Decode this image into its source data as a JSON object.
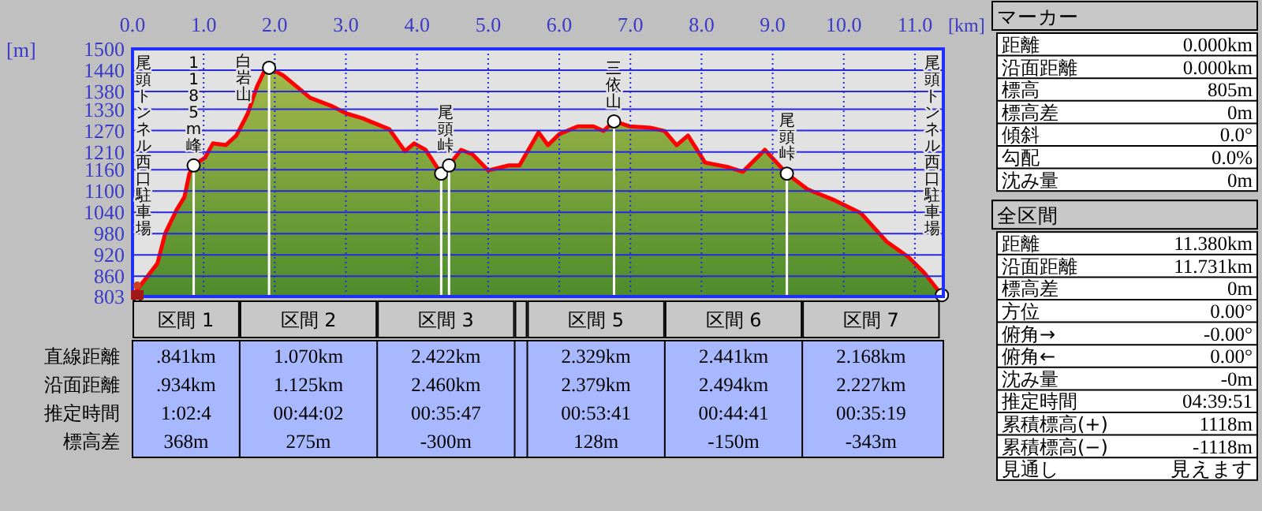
{
  "chart_data": [
    {
      "type": "area",
      "xlabel": "[km]",
      "ylabel": "[m]",
      "xlim": [
        0,
        11.4
      ],
      "ylim": [
        803,
        1500
      ],
      "xticks": [
        {
          "value": 0,
          "label": "0.0"
        },
        {
          "value": 1,
          "label": "1.0"
        },
        {
          "value": 2,
          "label": "2.0"
        },
        {
          "value": 3,
          "label": "3.0"
        },
        {
          "value": 4,
          "label": "4.0"
        },
        {
          "value": 5,
          "label": "5.0"
        },
        {
          "value": 6,
          "label": "6.0"
        },
        {
          "value": 7,
          "label": "7.0"
        },
        {
          "value": 8,
          "label": "8.0"
        },
        {
          "value": 9,
          "label": "9.0"
        },
        {
          "value": 10,
          "label": "10.0"
        },
        {
          "value": 11,
          "label": "11.0"
        }
      ],
      "yticks": [
        803,
        860,
        920,
        980,
        1040,
        1100,
        1160,
        1210,
        1270,
        1330,
        1380,
        1440,
        1500
      ],
      "grid": true,
      "series": [
        {
          "type": "area",
          "color": "#ff0000",
          "x": [
            0,
            0.35,
            0.46,
            0.62,
            0.73,
            0.8,
            0.86,
            1.02,
            1.13,
            1.31,
            1.46,
            1.62,
            1.75,
            1.86,
            1.92,
            2.12,
            2.5,
            2.79,
            3.01,
            3.23,
            3.61,
            3.83,
            3.96,
            4.12,
            4.34,
            4.45,
            4.62,
            4.78,
            5.0,
            5.29,
            5.44,
            5.71,
            5.84,
            6.0,
            6.26,
            6.48,
            6.62,
            6.77,
            6.99,
            7.28,
            7.48,
            7.65,
            7.81,
            8.05,
            8.38,
            8.58,
            8.89,
            9.2,
            9.49,
            9.87,
            10.24,
            10.6,
            10.91,
            11.13,
            11.38
          ],
          "values": [
            805,
            896,
            981,
            1047,
            1083,
            1149,
            1172,
            1194,
            1234,
            1229,
            1256,
            1318,
            1394,
            1440,
            1447,
            1425,
            1362,
            1340,
            1318,
            1305,
            1274,
            1212,
            1234,
            1216,
            1149,
            1172,
            1216,
            1203,
            1158,
            1172,
            1172,
            1265,
            1229,
            1260,
            1282,
            1282,
            1269,
            1296,
            1282,
            1278,
            1269,
            1229,
            1256,
            1180,
            1167,
            1154,
            1216,
            1149,
            1105,
            1074,
            1038,
            958,
            914,
            870,
            807
          ]
        },
        {
          "type": "lollipop",
          "color": "#ffffff",
          "marker": "circle",
          "x": [
            0.86,
            1.92,
            4.34,
            4.45,
            6.77,
            9.2,
            11.38
          ],
          "values": [
            1172,
            1447,
            1149,
            1172,
            1296,
            1149,
            807
          ]
        }
      ],
      "annotations": [
        "尾頭トンネル西口駐車場",
        {
          "text": "1185m峰",
          "x": 0.86,
          "y": 1172
        },
        {
          "text": "白岩山",
          "x": 1.92,
          "y": 1447
        },
        {
          "text": "尾頭峠",
          "x": 4.4,
          "y": 1172
        },
        {
          "text": "三依山",
          "x": 6.77,
          "y": 1296
        },
        {
          "text": "尾頭峠",
          "x": 9.2,
          "y": 1149
        },
        "尾頭トンネル西口駐車場"
      ]
    },
    {
      "type": "other",
      "categories": [
        "区間 1",
        "区間 2",
        "区間 3",
        null,
        "区間 5",
        "区間 6",
        "区間 7"
      ],
      "y_categories": [
        "直線距離",
        "沿面距離",
        "推定時間",
        "標高差"
      ],
      "cell_labels": [
        [
          ".841km",
          "1.070km",
          "2.422km",
          null,
          "2.329km",
          "2.441km",
          "2.168km"
        ],
        [
          ".934km",
          "1.125km",
          "2.460km",
          null,
          "2.379km",
          "2.494km",
          "2.227km"
        ],
        [
          "1:02:4",
          "00:44:02",
          "00:35:47",
          null,
          "00:53:41",
          "00:44:41",
          "00:35:19"
        ],
        [
          "368m",
          "275m",
          "-300m",
          null,
          "128m",
          "-150m",
          "-343m"
        ]
      ]
    },
    {
      "type": "other",
      "title": "マーカー",
      "y_categories": [
        "距離",
        "沿面距離",
        "標高",
        "標高差",
        "傾斜",
        "勾配",
        "沈み量"
      ],
      "cell_labels": [
        [
          "0.000km"
        ],
        [
          "0.000km"
        ],
        [
          "805m"
        ],
        [
          "0m"
        ],
        [
          "0.0°"
        ],
        [
          "0.0%"
        ],
        [
          "0m"
        ]
      ]
    },
    {
      "type": "other",
      "title": "全区間",
      "y_categories": [
        "距離",
        "沿面距離",
        "標高差",
        "方位",
        "俯角→",
        "俯角←",
        "沈み量",
        "推定時間",
        "累積標高(+)",
        "累積標高(−)",
        "見通し"
      ],
      "cell_labels": [
        [
          "11.380km"
        ],
        [
          "11.731km"
        ],
        [
          "0m"
        ],
        [
          "0.00°"
        ],
        [
          "-0.00°"
        ],
        [
          "0.00°"
        ],
        [
          "-0m"
        ],
        [
          "04:39:51"
        ],
        [
          "1118m"
        ],
        [
          "-1118m"
        ],
        [
          "見えます"
        ]
      ]
    }
  ]
}
